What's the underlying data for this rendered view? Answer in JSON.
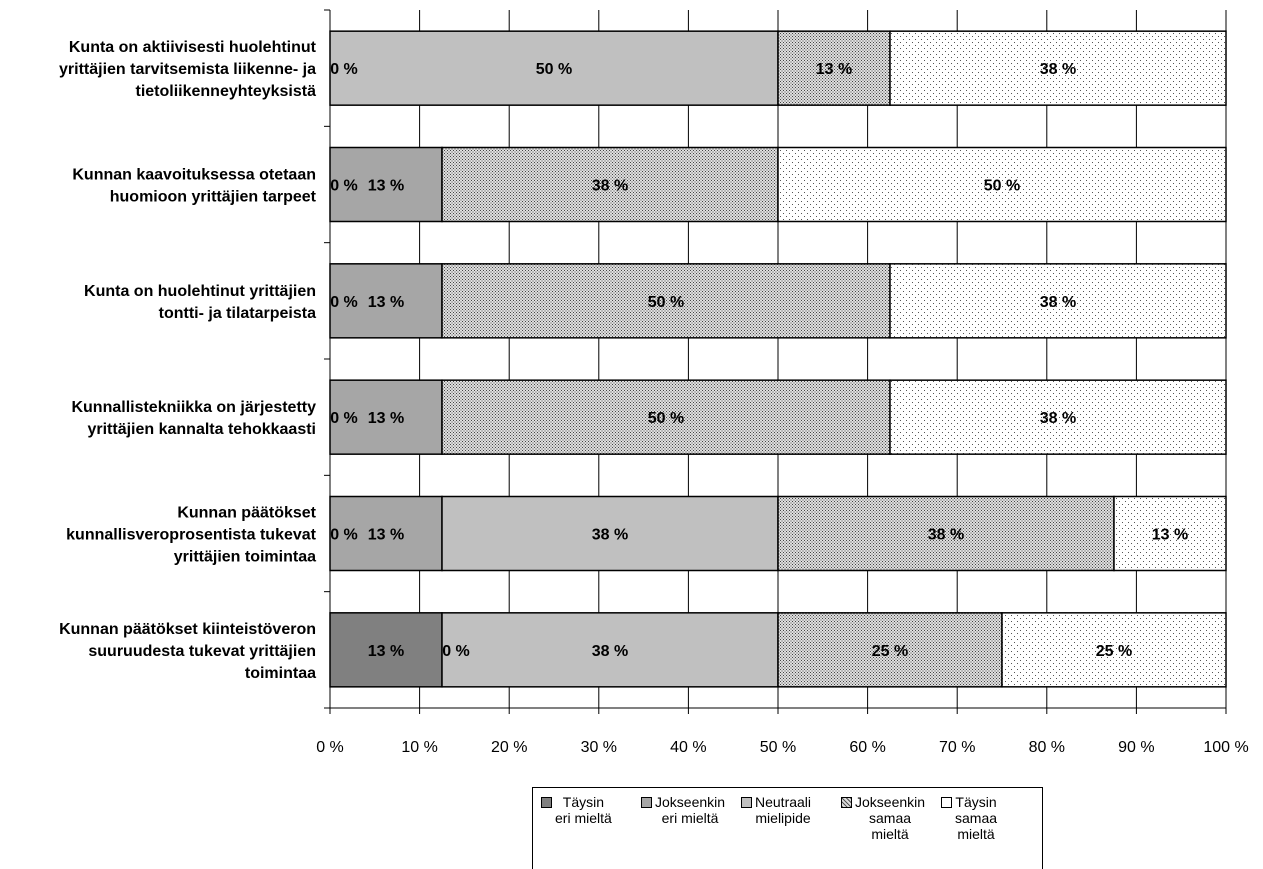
{
  "chart_data": {
    "type": "bar",
    "stacked": true,
    "orientation": "horizontal",
    "percent": true,
    "categories": [
      "Kunta on aktiivisesti huolehtinut yrittäjien tarvitsemista liikenne- ja tietoliikenneyhteyksistä",
      "Kunnan kaavoituksessa otetaan huomioon yrittäjien tarpeet",
      "Kunta on huolehtinut yrittäjien tontti- ja tilatarpeista",
      "Kunnallistekniikka on järjestetty yrittäjien kannalta tehokkaasti",
      "Kunnan päätökset kunnallisveroprosentista tukevat yrittäjien toimintaa",
      "Kunnan päätökset kiinteistöveron suuruudesta tukevat yrittäjien toimintaa"
    ],
    "category_lines": [
      [
        "Kunta on aktiivisesti huolehtinut",
        "yrittäjien tarvitsemista liikenne- ja",
        "tietoliikenneyhteyksistä"
      ],
      [
        "Kunnan kaavoituksessa otetaan",
        "huomioon yrittäjien tarpeet"
      ],
      [
        "Kunta on huolehtinut yrittäjien",
        "tontti- ja tilatarpeista"
      ],
      [
        "Kunnallistekniikka on järjestetty",
        "yrittäjien kannalta tehokkaasti"
      ],
      [
        "Kunnan päätökset",
        "kunnallisveroprosentista tukevat",
        "yrittäjien toimintaa"
      ],
      [
        "Kunnan päätökset kiinteistöveron",
        "suuruudesta tukevat yrittäjien",
        "toimintaa"
      ]
    ],
    "series": [
      {
        "name": "Täysin eri mieltä",
        "legend_lines": [
          "Täysin",
          "eri mieltä"
        ],
        "color": "#808080",
        "pattern": "solid-dark",
        "values": [
          0,
          0,
          0,
          0,
          0,
          12.5
        ],
        "labels": [
          "0 %",
          "0 %",
          "0 %",
          "0 %",
          "0 %",
          "13 %"
        ]
      },
      {
        "name": "Jokseenkin eri mieltä",
        "legend_lines": [
          "Jokseenkin",
          "eri mieltä"
        ],
        "color": "#a6a6a6",
        "pattern": "solid-mid",
        "values": [
          0,
          12.5,
          12.5,
          12.5,
          12.5,
          0
        ],
        "labels": [
          "",
          "13 %",
          "13 %",
          "13 %",
          "13 %",
          "0 %"
        ]
      },
      {
        "name": "Neutraali mielipide",
        "legend_lines": [
          "Neutraali",
          "mielipide"
        ],
        "color": "#c0c0c0",
        "pattern": "solid-light",
        "values": [
          50,
          0,
          0,
          0,
          37.5,
          37.5
        ],
        "labels": [
          "50 %",
          "",
          "",
          "",
          "38 %",
          "38 %"
        ]
      },
      {
        "name": "Jokseenkin samaa mieltä",
        "legend_lines": [
          "Jokseenkin",
          "samaa",
          "mieltä"
        ],
        "color": "#cccccc",
        "pattern": "dense-dots",
        "values": [
          12.5,
          37.5,
          50,
          50,
          37.5,
          25
        ],
        "labels": [
          "13 %",
          "38 %",
          "50 %",
          "50 %",
          "38 %",
          "25 %"
        ]
      },
      {
        "name": "Täysin samaa mieltä",
        "legend_lines": [
          "Täysin",
          "samaa",
          "mieltä"
        ],
        "color": "#ffffff",
        "pattern": "sparse-dots",
        "values": [
          37.5,
          50,
          37.5,
          37.5,
          12.5,
          25
        ],
        "labels": [
          "38 %",
          "50 %",
          "38 %",
          "38 %",
          "13 %",
          "25 %"
        ]
      }
    ],
    "xticks": [
      "0 %",
      "10 %",
      "20 %",
      "30 %",
      "40 %",
      "50 %",
      "60 %",
      "70 %",
      "80 %",
      "90 %",
      "100 %"
    ],
    "xlim": [
      0,
      100
    ],
    "grid": true,
    "legend_position": "bottom",
    "title": "",
    "xlabel": "",
    "ylabel": ""
  }
}
